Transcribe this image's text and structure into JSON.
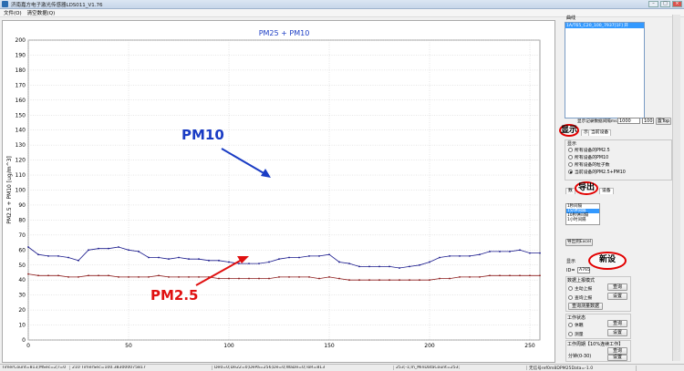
{
  "window": {
    "title": "济南嘉方电子激光传感器LDS011_V1.76"
  },
  "menu": [
    "文件(O)",
    "清空数据(Q)"
  ],
  "chart_data": {
    "type": "line",
    "title": "PM25 + PM10",
    "xlabel": "",
    "ylabel": "PM2.5 + PM10 [ug/m^3]",
    "xlim": [
      0,
      255
    ],
    "ylim": [
      0,
      200
    ],
    "xticks": [
      0,
      50,
      100,
      150,
      200,
      250
    ],
    "yticks": [
      0,
      10,
      20,
      30,
      40,
      50,
      60,
      70,
      80,
      90,
      100,
      110,
      120,
      130,
      140,
      150,
      160,
      170,
      180,
      190,
      200
    ],
    "grid": true,
    "series": [
      {
        "name": "PM10",
        "color": "#1a1a8c",
        "x": [
          0,
          5,
          10,
          15,
          20,
          25,
          30,
          35,
          40,
          45,
          50,
          55,
          60,
          65,
          70,
          75,
          80,
          85,
          90,
          95,
          100,
          105,
          110,
          115,
          120,
          125,
          130,
          135,
          140,
          145,
          150,
          155,
          160,
          165,
          170,
          175,
          180,
          185,
          190,
          195,
          200,
          205,
          210,
          215,
          220,
          225,
          230,
          235,
          240,
          245,
          250,
          255
        ],
        "values": [
          62,
          57,
          56,
          56,
          55,
          53,
          60,
          61,
          61,
          62,
          60,
          59,
          55,
          55,
          54,
          55,
          54,
          54,
          53,
          53,
          52,
          51,
          51,
          51,
          52,
          54,
          55,
          55,
          56,
          56,
          57,
          52,
          51,
          49,
          49,
          49,
          49,
          48,
          49,
          50,
          52,
          55,
          56,
          56,
          56,
          57,
          59,
          59,
          59,
          60,
          58,
          58
        ]
      },
      {
        "name": "PM2.5",
        "color": "#8b1a1a",
        "x": [
          0,
          5,
          10,
          15,
          20,
          25,
          30,
          35,
          40,
          45,
          50,
          55,
          60,
          65,
          70,
          75,
          80,
          85,
          90,
          95,
          100,
          105,
          110,
          115,
          120,
          125,
          130,
          135,
          140,
          145,
          150,
          155,
          160,
          165,
          170,
          175,
          180,
          185,
          190,
          195,
          200,
          205,
          210,
          215,
          220,
          225,
          230,
          235,
          240,
          245,
          250,
          255
        ],
        "values": [
          44,
          43,
          43,
          43,
          42,
          42,
          43,
          43,
          43,
          42,
          42,
          42,
          42,
          43,
          42,
          42,
          42,
          42,
          42,
          41,
          41,
          41,
          41,
          41,
          41,
          42,
          42,
          42,
          42,
          41,
          42,
          41,
          40,
          40,
          40,
          40,
          40,
          40,
          40,
          40,
          40,
          41,
          41,
          42,
          42,
          42,
          43,
          43,
          43,
          43,
          43,
          43
        ]
      }
    ],
    "annotations": [
      {
        "text": "PM10",
        "color": "#1a3cc4"
      },
      {
        "text": "PM2.5",
        "color": "#e01010"
      }
    ]
  },
  "sidebar": {
    "curve_group": "曲线",
    "curve_item": "1A/T65_C20_100_7937[1F] 开",
    "record_label": "显示记录数据间隔ms",
    "record_value": "1000",
    "record_value2": "100",
    "top_button": "置Top",
    "display_tab_label": "显示",
    "tabs": [
      "当前设备"
    ],
    "display_label": "显示",
    "radios": [
      "所有设备的PM2.5",
      "所有设备的PM10",
      "所有设备的粒子数",
      "当前设备的PM2.5+PM10"
    ],
    "export_tabs": [
      "数",
      "设备"
    ],
    "export_list": [
      "1秒间隔",
      "1分钟间隔",
      "10秒钟间隔",
      "1小时间隔"
    ],
    "export_button": "导出到Excel",
    "annot_display": "显示",
    "annot_export": "导出",
    "annot_settings": "新设",
    "id_label": "ID=",
    "id_value": "A765",
    "upload_mode_label": "数据上报模式",
    "upload_radios": [
      "主动上报",
      "查询上报"
    ],
    "query_button": "查询",
    "set_button": "设置",
    "query_data_button": "查询测量数据",
    "work_state_label": "工作状态",
    "work_radios": [
      "休眠",
      "测量"
    ],
    "work_query": "查询",
    "work_set": "设置",
    "period_label": "工作周期【10%连续工作】",
    "period_unit": "分钟(0-30)",
    "period_query": "查询",
    "period_set": "设置"
  },
  "status": [
    "TimerCount=813;MSec=2;r=0",
    "210  TimerSec=100.383000075817",
    "De0=0;De22=0;DePa=256;De=0;WaDe=0;ToR=813",
    "253;-1;m_MinDataCount=253;",
    "无信号ref0m8DPM25Data=-1.0"
  ]
}
